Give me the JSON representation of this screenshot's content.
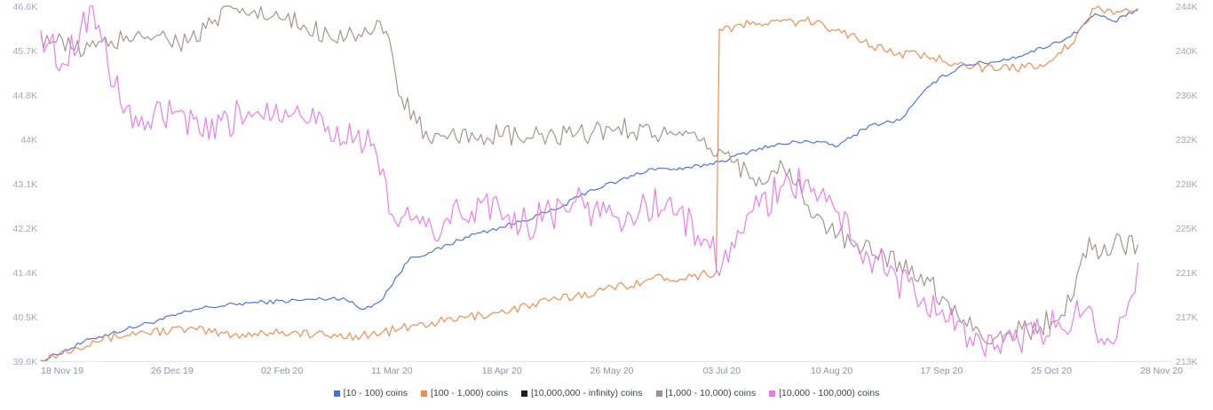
{
  "chart_data": {
    "type": "line",
    "x_ticks": [
      "18 Nov 19",
      "26 Dec 19",
      "02 Feb 20",
      "11 Mar 20",
      "18 Apr 20",
      "26 May 20",
      "03 Jul 20",
      "10 Aug 20",
      "17 Sep 20",
      "25 Oct 20",
      "28 Nov 20"
    ],
    "left_axis": {
      "ticks": [
        "39.6K",
        "40.5K",
        "41.4K",
        "42.2K",
        "43.1K",
        "44K",
        "44.8K",
        "45.7K",
        "46.6K"
      ],
      "range": [
        39600,
        46600
      ]
    },
    "right_axis": {
      "ticks": [
        "213K",
        "217K",
        "221K",
        "225K",
        "228K",
        "232K",
        "236K",
        "240K",
        "244K"
      ],
      "range": [
        213000,
        244000
      ]
    },
    "grid": false,
    "legend_position": "bottom-center",
    "series": [
      {
        "name": "[10 - 100) coins",
        "color": "#4a6ee0",
        "axis": "left",
        "points": [
          [
            "2019-11-18",
            39600
          ],
          [
            "2019-12-05",
            40050
          ],
          [
            "2019-12-26",
            40400
          ],
          [
            "2020-01-10",
            40650
          ],
          [
            "2020-01-25",
            40750
          ],
          [
            "2020-02-10",
            40800
          ],
          [
            "2020-02-25",
            40850
          ],
          [
            "2020-03-02",
            40620
          ],
          [
            "2020-03-08",
            40780
          ],
          [
            "2020-03-18",
            41650
          ],
          [
            "2020-03-25",
            41750
          ],
          [
            "2020-04-05",
            42050
          ],
          [
            "2020-04-20",
            42300
          ],
          [
            "2020-05-05",
            42600
          ],
          [
            "2020-05-15",
            42950
          ],
          [
            "2020-05-25",
            43150
          ],
          [
            "2020-06-05",
            43400
          ],
          [
            "2020-06-15",
            43380
          ],
          [
            "2020-06-28",
            43550
          ],
          [
            "2020-07-10",
            43800
          ],
          [
            "2020-07-25",
            43950
          ],
          [
            "2020-08-05",
            43850
          ],
          [
            "2020-08-15",
            44250
          ],
          [
            "2020-08-25",
            44350
          ],
          [
            "2020-09-05",
            45100
          ],
          [
            "2020-09-15",
            45450
          ],
          [
            "2020-09-25",
            45500
          ],
          [
            "2020-10-05",
            45650
          ],
          [
            "2020-10-20",
            46000
          ],
          [
            "2020-10-28",
            46450
          ],
          [
            "2020-11-03",
            46300
          ],
          [
            "2020-11-07",
            46400
          ],
          [
            "2020-11-11",
            46550
          ]
        ]
      },
      {
        "name": "[100 - 1,000) coins",
        "color": "#f08a4b",
        "axis": "right",
        "points": [
          [
            "2019-11-18",
            213100
          ],
          [
            "2019-12-05",
            214800
          ],
          [
            "2019-12-20",
            215500
          ],
          [
            "2020-01-05",
            215800
          ],
          [
            "2020-01-20",
            215300
          ],
          [
            "2020-02-05",
            215600
          ],
          [
            "2020-02-20",
            215200
          ],
          [
            "2020-03-05",
            215300
          ],
          [
            "2020-03-20",
            216100
          ],
          [
            "2020-04-05",
            216800
          ],
          [
            "2020-04-20",
            217500
          ],
          [
            "2020-05-05",
            218400
          ],
          [
            "2020-05-20",
            219200
          ],
          [
            "2020-06-05",
            220200
          ],
          [
            "2020-06-18",
            220400
          ],
          [
            "2020-06-26",
            220800
          ],
          [
            "2020-06-27",
            242000
          ],
          [
            "2020-07-10",
            242500
          ],
          [
            "2020-07-25",
            242700
          ],
          [
            "2020-08-05",
            242000
          ],
          [
            "2020-08-20",
            240100
          ],
          [
            "2020-09-05",
            239500
          ],
          [
            "2020-09-15",
            239000
          ],
          [
            "2020-09-25",
            238400
          ],
          [
            "2020-10-10",
            238900
          ],
          [
            "2020-10-20",
            240600
          ],
          [
            "2020-10-28",
            243800
          ],
          [
            "2020-11-05",
            243500
          ],
          [
            "2020-11-11",
            243600
          ]
        ]
      },
      {
        "name": "[10,000,000 - infinity) coins",
        "color": "#1c1c1c",
        "axis": "left",
        "points": []
      },
      {
        "name": "[1,000 - 10,000) coins",
        "color": "#a4908a",
        "axis": "right",
        "points": [
          [
            "2019-11-18",
            241500
          ],
          [
            "2019-11-28",
            240300
          ],
          [
            "2019-12-10",
            240500
          ],
          [
            "2019-12-20",
            241800
          ],
          [
            "2020-01-05",
            240800
          ],
          [
            "2020-01-20",
            243800
          ],
          [
            "2020-02-05",
            242800
          ],
          [
            "2020-02-20",
            241600
          ],
          [
            "2020-03-10",
            241800
          ],
          [
            "2020-03-15",
            236000
          ],
          [
            "2020-03-25",
            232000
          ],
          [
            "2020-04-10",
            232800
          ],
          [
            "2020-04-25",
            232500
          ],
          [
            "2020-05-10",
            232600
          ],
          [
            "2020-05-25",
            233500
          ],
          [
            "2020-06-10",
            232800
          ],
          [
            "2020-06-28",
            231300
          ],
          [
            "2020-07-08",
            229000
          ],
          [
            "2020-07-20",
            229800
          ],
          [
            "2020-07-28",
            225500
          ],
          [
            "2020-08-10",
            223000
          ],
          [
            "2020-08-20",
            222300
          ],
          [
            "2020-09-01",
            220600
          ],
          [
            "2020-09-15",
            216600
          ],
          [
            "2020-09-25",
            215000
          ],
          [
            "2020-10-10",
            216000
          ],
          [
            "2020-10-20",
            218200
          ],
          [
            "2020-10-26",
            223800
          ],
          [
            "2020-10-30",
            222300
          ],
          [
            "2020-11-03",
            223200
          ],
          [
            "2020-11-11",
            223200
          ]
        ]
      },
      {
        "name": "[10,000 - 100,000) coins",
        "color": "#ee77ee",
        "axis": "right",
        "points": [
          [
            "2019-11-18",
            241900
          ],
          [
            "2019-11-25",
            239000
          ],
          [
            "2019-12-05",
            244000
          ],
          [
            "2019-12-12",
            237000
          ],
          [
            "2019-12-20",
            233500
          ],
          [
            "2020-01-01",
            234800
          ],
          [
            "2020-01-10",
            232600
          ],
          [
            "2020-01-25",
            234800
          ],
          [
            "2020-02-10",
            235300
          ],
          [
            "2020-02-20",
            233500
          ],
          [
            "2020-03-05",
            231800
          ],
          [
            "2020-03-12",
            225800
          ],
          [
            "2020-03-25",
            224500
          ],
          [
            "2020-04-10",
            226800
          ],
          [
            "2020-04-25",
            225000
          ],
          [
            "2020-05-10",
            226800
          ],
          [
            "2020-05-25",
            225500
          ],
          [
            "2020-06-10",
            227000
          ],
          [
            "2020-06-20",
            224000
          ],
          [
            "2020-06-28",
            221500
          ],
          [
            "2020-07-10",
            226500
          ],
          [
            "2020-07-20",
            228800
          ],
          [
            "2020-07-30",
            227500
          ],
          [
            "2020-08-05",
            226000
          ],
          [
            "2020-08-15",
            222000
          ],
          [
            "2020-08-30",
            219000
          ],
          [
            "2020-09-10",
            216500
          ],
          [
            "2020-09-25",
            214000
          ],
          [
            "2020-10-10",
            215500
          ],
          [
            "2020-10-25",
            217500
          ],
          [
            "2020-11-01",
            215000
          ],
          [
            "2020-11-07",
            217000
          ],
          [
            "2020-11-11",
            221600
          ]
        ]
      }
    ]
  }
}
